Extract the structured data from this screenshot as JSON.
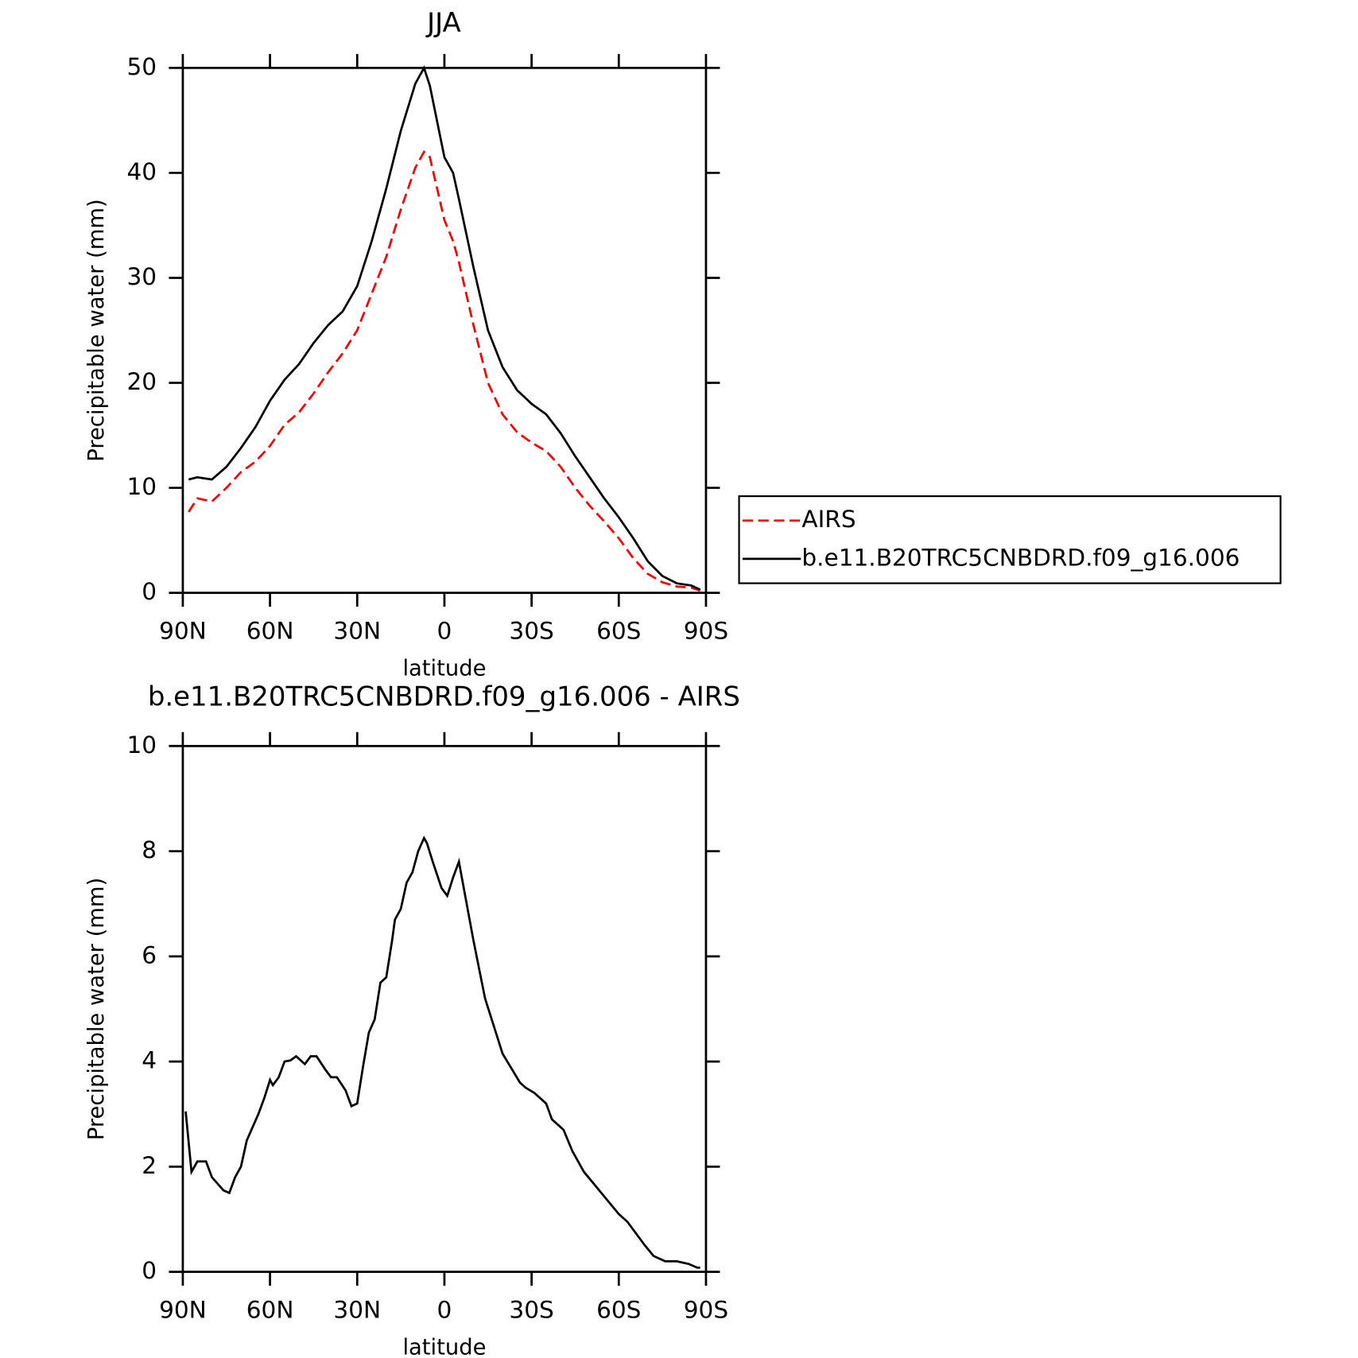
{
  "chart_data": [
    {
      "type": "line",
      "title": "JJA",
      "xlabel": "latitude",
      "ylabel": "Precipitable water (mm)",
      "x": [
        88,
        85,
        80,
        75,
        70,
        65,
        60,
        55,
        50,
        45,
        40,
        35,
        30,
        25,
        20,
        15,
        10,
        7,
        5,
        0,
        -3,
        -5,
        -10,
        -15,
        -20,
        -25,
        -30,
        -35,
        -40,
        -45,
        -50,
        -55,
        -60,
        -65,
        -70,
        -75,
        -80,
        -85,
        -88
      ],
      "series": [
        {
          "name": "AIRS",
          "color": "#ff0000",
          "linestyle": "dashed",
          "values": [
            7.7,
            9.0,
            8.7,
            10.0,
            11.5,
            12.5,
            14.0,
            16.0,
            17.2,
            19.0,
            21.0,
            22.8,
            25.0,
            28.5,
            32.0,
            36.5,
            40.5,
            42.0,
            41.5,
            35.5,
            33.5,
            31.5,
            25.5,
            20.0,
            17.0,
            15.3,
            14.3,
            13.5,
            12.0,
            10.0,
            8.3,
            6.8,
            5.2,
            3.3,
            1.8,
            1.0,
            0.6,
            0.5,
            0.2
          ]
        },
        {
          "name": "b.e11.B20TRC5CNBDRD.f09_g16.006",
          "color": "#000000",
          "linestyle": "solid",
          "values": [
            10.8,
            11.0,
            10.8,
            12.0,
            13.8,
            15.8,
            18.3,
            20.3,
            21.8,
            23.8,
            25.5,
            26.8,
            29.2,
            33.5,
            38.5,
            44.0,
            48.5,
            50.0,
            48.3,
            41.5,
            40.0,
            37.5,
            31.0,
            25.0,
            21.5,
            19.3,
            18.0,
            17.0,
            15.2,
            13.0,
            11.0,
            9.0,
            7.2,
            5.2,
            3.0,
            1.6,
            0.9,
            0.7,
            0.3
          ]
        }
      ],
      "xlim": [
        90,
        -90
      ],
      "xticks": [
        {
          "value": 90,
          "label": "90N"
        },
        {
          "value": 60,
          "label": "60N"
        },
        {
          "value": 30,
          "label": "30N"
        },
        0,
        {
          "value": -30,
          "label": "30S"
        },
        {
          "value": -60,
          "label": "60S"
        },
        {
          "value": -90,
          "label": "90S"
        }
      ],
      "ylim": [
        0,
        50
      ],
      "yticks": [
        0,
        10,
        20,
        30,
        40,
        50
      ],
      "legend": "outside-right"
    },
    {
      "type": "line",
      "title": "b.e11.B20TRC5CNBDRD.f09_g16.006 - AIRS",
      "xlabel": "latitude",
      "ylabel": "Precipitable water (mm)",
      "x": [
        89,
        87,
        85,
        82,
        80,
        76,
        74,
        72,
        70,
        68,
        64,
        62,
        60,
        59,
        57,
        55,
        53,
        51,
        49,
        48,
        46,
        44,
        41,
        39,
        37,
        34,
        32,
        30,
        28,
        26,
        24,
        22,
        20,
        18,
        17,
        15,
        13,
        11,
        9,
        7,
        6,
        4,
        1,
        -1,
        -3,
        -5,
        -6,
        -10,
        -14,
        -18,
        -20,
        -26,
        -28,
        -31,
        -35,
        -37,
        -41,
        -44,
        -48,
        -51,
        -60,
        -63,
        -65,
        -69,
        -72,
        -76,
        -80,
        -84,
        -87,
        -88
      ],
      "series": [
        {
          "name": "b.e11.B20TRC5CNBDRD.f09_g16.006 - AIRS",
          "color": "#000000",
          "linestyle": "solid",
          "values": [
            3.05,
            1.9,
            2.1,
            2.1,
            1.8,
            1.55,
            1.5,
            1.8,
            2.0,
            2.5,
            3.0,
            3.3,
            3.65,
            3.55,
            3.7,
            4.0,
            4.02,
            4.1,
            4.0,
            3.95,
            4.1,
            4.1,
            3.85,
            3.7,
            3.7,
            3.45,
            3.15,
            3.2,
            3.9,
            4.55,
            4.8,
            5.5,
            5.6,
            6.3,
            6.7,
            6.9,
            7.4,
            7.6,
            8.0,
            8.25,
            8.15,
            7.8,
            7.3,
            7.15,
            7.5,
            7.8,
            7.5,
            6.3,
            5.2,
            4.5,
            4.15,
            3.6,
            3.5,
            3.4,
            3.2,
            2.9,
            2.7,
            2.3,
            1.9,
            1.7,
            1.1,
            0.95,
            0.8,
            0.5,
            0.3,
            0.2,
            0.2,
            0.15,
            0.08,
            0.08
          ]
        }
      ],
      "xlim": [
        90,
        -90
      ],
      "xticks": [
        {
          "value": 90,
          "label": "90N"
        },
        {
          "value": 60,
          "label": "60N"
        },
        {
          "value": 30,
          "label": "30N"
        },
        0,
        {
          "value": -30,
          "label": "30S"
        },
        {
          "value": -60,
          "label": "60S"
        },
        {
          "value": -90,
          "label": "90S"
        }
      ],
      "ylim": [
        0,
        10
      ],
      "yticks": [
        0,
        2,
        4,
        6,
        8,
        10
      ]
    }
  ]
}
